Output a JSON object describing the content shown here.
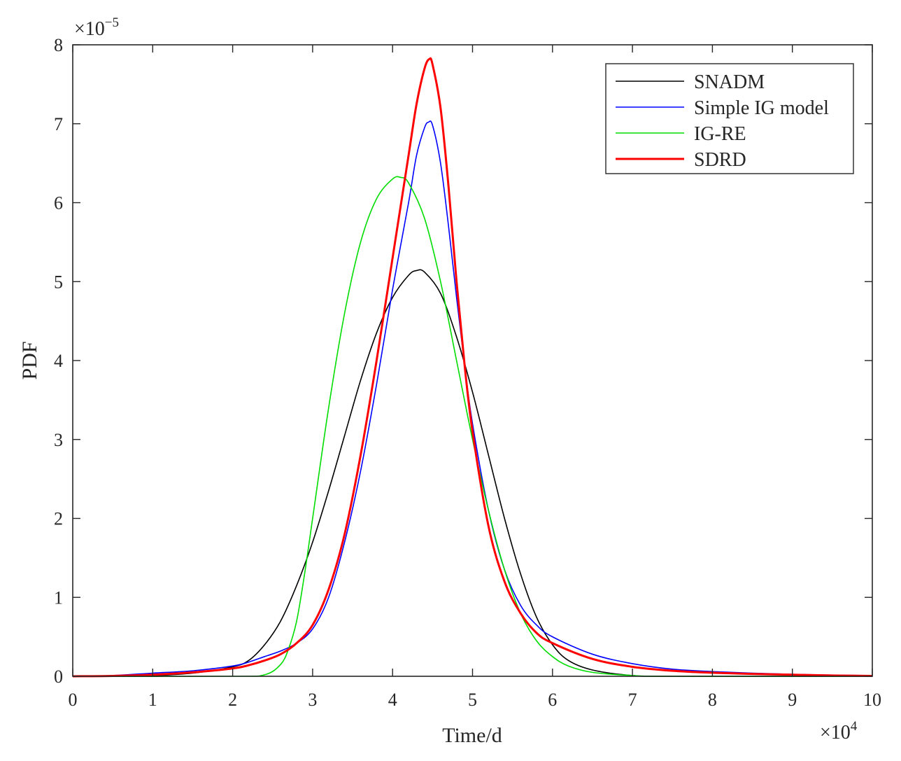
{
  "chart_data": {
    "type": "line",
    "title": "",
    "xlabel": "Time/d",
    "ylabel": "PDF",
    "x_multiplier": {
      "base": "×10",
      "exponent": "4"
    },
    "y_multiplier": {
      "base": "×10",
      "exponent": "−5"
    },
    "xlim": [
      0,
      100000
    ],
    "ylim": [
      0,
      8e-05
    ],
    "x_tick_values": [
      0,
      10000,
      20000,
      30000,
      40000,
      50000,
      60000,
      70000,
      80000,
      90000,
      100000
    ],
    "x_tick_labels": [
      "0",
      "1",
      "2",
      "3",
      "4",
      "5",
      "6",
      "7",
      "8",
      "9",
      "10"
    ],
    "y_tick_values": [
      0,
      1e-05,
      2e-05,
      3e-05,
      4e-05,
      5e-05,
      6e-05,
      7e-05,
      8e-05
    ],
    "y_tick_labels": [
      "0",
      "1",
      "2",
      "3",
      "4",
      "5",
      "6",
      "7",
      "8"
    ],
    "grid": false,
    "legend_position": "top-right",
    "series": [
      {
        "name": "SNADM",
        "color": "#000000",
        "points": [
          [
            0,
            0.0
          ],
          [
            5000,
            2e-08
          ],
          [
            10000,
            1e-07
          ],
          [
            15000,
            4e-07
          ],
          [
            20000,
            1.2e-06
          ],
          [
            22000,
            2e-06
          ],
          [
            24000,
            4e-06
          ],
          [
            26000,
            7e-06
          ],
          [
            28000,
            1.15e-05
          ],
          [
            30000,
            1.7e-05
          ],
          [
            32000,
            2.35e-05
          ],
          [
            34000,
            3.05e-05
          ],
          [
            36000,
            3.75e-05
          ],
          [
            38000,
            4.35e-05
          ],
          [
            40000,
            4.8e-05
          ],
          [
            42000,
            5.08e-05
          ],
          [
            43000,
            5.14e-05
          ],
          [
            44000,
            5.12e-05
          ],
          [
            46000,
            4.85e-05
          ],
          [
            48000,
            4.3e-05
          ],
          [
            50000,
            3.6e-05
          ],
          [
            52000,
            2.8e-05
          ],
          [
            54000,
            2e-05
          ],
          [
            56000,
            1.3e-05
          ],
          [
            58000,
            7.5e-06
          ],
          [
            60000,
            4e-06
          ],
          [
            62000,
            2e-06
          ],
          [
            65000,
            8e-07
          ],
          [
            70000,
            1e-07
          ],
          [
            75000,
            0.0
          ],
          [
            100000,
            0.0
          ]
        ]
      },
      {
        "name": "Simple IG model",
        "color": "#0000ff",
        "points": [
          [
            0,
            0.0
          ],
          [
            5000,
            1e-07
          ],
          [
            10000,
            4e-07
          ],
          [
            15000,
            7e-07
          ],
          [
            20000,
            1.3e-06
          ],
          [
            22000,
            1.8e-06
          ],
          [
            24000,
            2.5e-06
          ],
          [
            26000,
            3.2e-06
          ],
          [
            28000,
            4.2e-06
          ],
          [
            30000,
            6e-06
          ],
          [
            32000,
            1e-05
          ],
          [
            34000,
            1.7e-05
          ],
          [
            36000,
            2.6e-05
          ],
          [
            38000,
            3.7e-05
          ],
          [
            40000,
            4.9e-05
          ],
          [
            42000,
            6e-05
          ],
          [
            43000,
            6.6e-05
          ],
          [
            44000,
            6.95e-05
          ],
          [
            44500,
            7.02e-05
          ],
          [
            45000,
            6.98e-05
          ],
          [
            46000,
            6.5e-05
          ],
          [
            47000,
            5.7e-05
          ],
          [
            48000,
            4.8e-05
          ],
          [
            49000,
            3.95e-05
          ],
          [
            50000,
            3.2e-05
          ],
          [
            52000,
            2.1e-05
          ],
          [
            54000,
            1.35e-05
          ],
          [
            56000,
            9e-06
          ],
          [
            58000,
            6.5e-06
          ],
          [
            60000,
            5e-06
          ],
          [
            65000,
            2.8e-06
          ],
          [
            70000,
            1.6e-06
          ],
          [
            75000,
            9e-07
          ],
          [
            80000,
            6e-07
          ],
          [
            85000,
            4e-07
          ],
          [
            90000,
            2.5e-07
          ],
          [
            95000,
            1.5e-07
          ],
          [
            100000,
            1e-07
          ]
        ]
      },
      {
        "name": "IG-RE",
        "color": "#00dd00",
        "points": [
          [
            0,
            0.0
          ],
          [
            20000,
            0.0
          ],
          [
            24000,
            2e-07
          ],
          [
            26000,
            1.5e-06
          ],
          [
            27000,
            3.5e-06
          ],
          [
            28000,
            7e-06
          ],
          [
            29000,
            1.3e-05
          ],
          [
            30000,
            2e-05
          ],
          [
            32000,
            3.4e-05
          ],
          [
            34000,
            4.6e-05
          ],
          [
            36000,
            5.5e-05
          ],
          [
            38000,
            6.05e-05
          ],
          [
            40000,
            6.3e-05
          ],
          [
            41000,
            6.32e-05
          ],
          [
            42000,
            6.25e-05
          ],
          [
            44000,
            5.8e-05
          ],
          [
            46000,
            5e-05
          ],
          [
            48000,
            4e-05
          ],
          [
            50000,
            3e-05
          ],
          [
            52000,
            2.1e-05
          ],
          [
            54000,
            1.35e-05
          ],
          [
            56000,
            8e-06
          ],
          [
            58000,
            4.5e-06
          ],
          [
            60000,
            2.5e-06
          ],
          [
            62000,
            1.3e-06
          ],
          [
            65000,
            5e-07
          ],
          [
            70000,
            1e-07
          ],
          [
            75000,
            0.0
          ],
          [
            100000,
            0.0
          ]
        ]
      },
      {
        "name": "SDRD",
        "color": "#ff0000",
        "points": [
          [
            0,
            0.0
          ],
          [
            5000,
            5e-08
          ],
          [
            10000,
            2e-07
          ],
          [
            15000,
            5e-07
          ],
          [
            20000,
            1e-06
          ],
          [
            22000,
            1.4e-06
          ],
          [
            24000,
            2e-06
          ],
          [
            26000,
            2.8e-06
          ],
          [
            28000,
            4.2e-06
          ],
          [
            30000,
            6.5e-06
          ],
          [
            32000,
            1.1e-05
          ],
          [
            34000,
            1.8e-05
          ],
          [
            36000,
            2.8e-05
          ],
          [
            38000,
            4e-05
          ],
          [
            40000,
            5.3e-05
          ],
          [
            42000,
            6.6e-05
          ],
          [
            43000,
            7.25e-05
          ],
          [
            44000,
            7.7e-05
          ],
          [
            44600,
            7.82e-05
          ],
          [
            45000,
            7.75e-05
          ],
          [
            46000,
            7.2e-05
          ],
          [
            47000,
            6.2e-05
          ],
          [
            48000,
            5e-05
          ],
          [
            49000,
            3.95e-05
          ],
          [
            50000,
            3.1e-05
          ],
          [
            52000,
            1.9e-05
          ],
          [
            54000,
            1.2e-05
          ],
          [
            56000,
            8e-06
          ],
          [
            58000,
            5.5e-06
          ],
          [
            60000,
            4.2e-06
          ],
          [
            65000,
            2.2e-06
          ],
          [
            70000,
            1.2e-06
          ],
          [
            75000,
            7e-07
          ],
          [
            80000,
            4.5e-07
          ],
          [
            85000,
            3e-07
          ],
          [
            90000,
            2e-07
          ],
          [
            95000,
            1e-07
          ],
          [
            100000,
            5e-08
          ]
        ]
      }
    ]
  }
}
